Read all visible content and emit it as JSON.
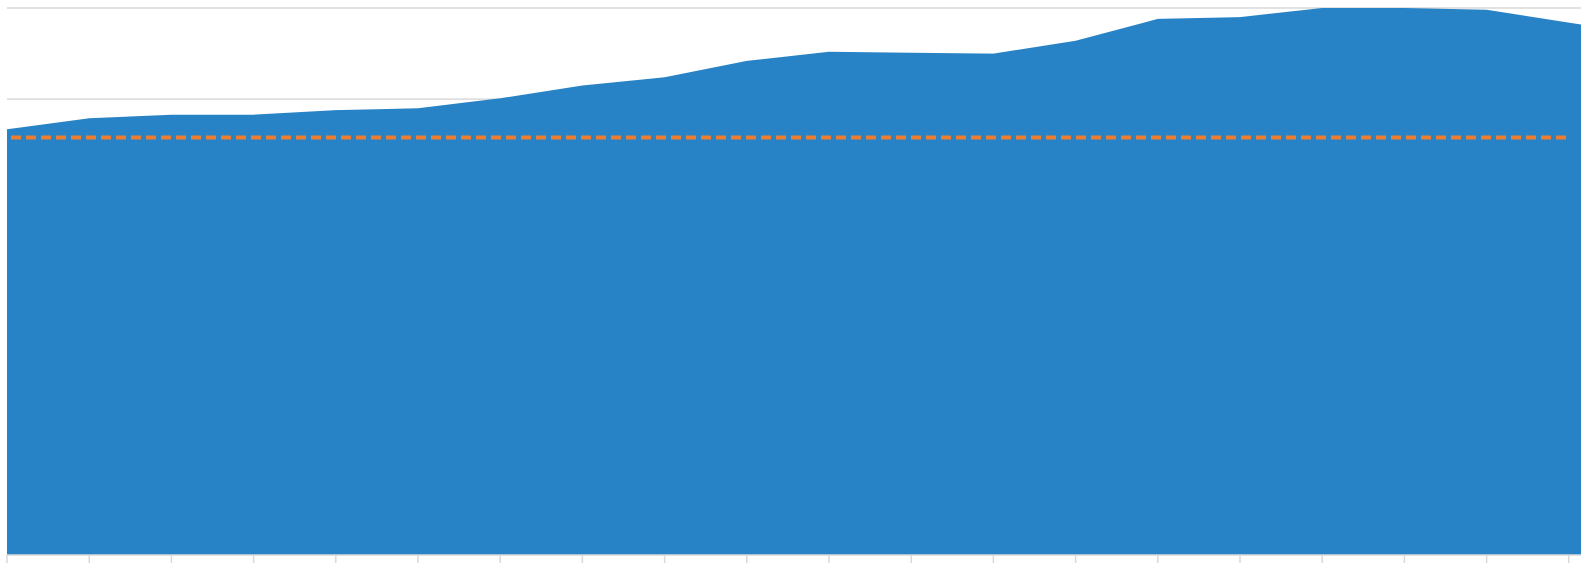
{
  "chart_data": {
    "type": "area",
    "title": "",
    "xlabel": "",
    "ylabel": "",
    "x_count": 20,
    "series": [
      {
        "values": [
          467,
          479,
          483,
          483,
          488,
          490,
          501,
          515,
          524,
          542,
          552,
          551,
          550,
          564,
          588,
          590,
          600,
          600,
          598,
          584
        ],
        "color": "#2783c6"
      }
    ],
    "reference_line": {
      "value": 458,
      "style": "dashed",
      "color": "#ed7d31"
    },
    "ylim": [
      0,
      600
    ],
    "yticks": [
      500,
      600
    ],
    "grid": true,
    "legend": "none",
    "tick_labels_visible": false
  }
}
